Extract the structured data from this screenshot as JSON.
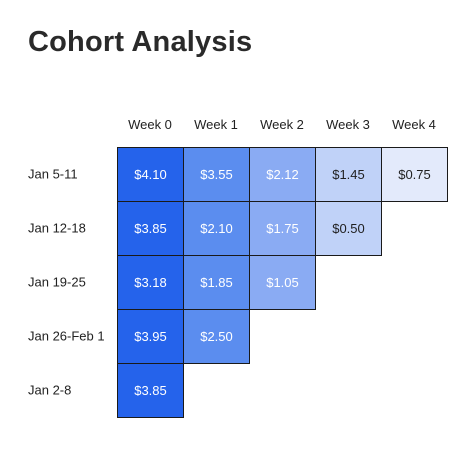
{
  "chart_data": {
    "type": "heatmap",
    "title": "Cohort Analysis",
    "columns": [
      "Week 0",
      "Week 1",
      "Week 2",
      "Week 3",
      "Week 4"
    ],
    "rows": [
      "Jan 5-11",
      "Jan 12-18",
      "Jan 19-25",
      "Jan 26-Feb 1",
      "Jan 2-8"
    ],
    "values": [
      [
        4.1,
        3.55,
        2.12,
        1.45,
        0.75
      ],
      [
        3.85,
        2.1,
        1.75,
        0.5,
        null
      ],
      [
        3.18,
        1.85,
        1.05,
        null,
        null
      ],
      [
        3.95,
        2.5,
        null,
        null,
        null
      ],
      [
        3.85,
        null,
        null,
        null,
        null
      ]
    ],
    "labels": [
      [
        "$4.10",
        "$3.55",
        "$2.12",
        "$1.45",
        "$0.75"
      ],
      [
        "$3.85",
        "$2.10",
        "$1.75",
        "$0.50",
        null
      ],
      [
        "$3.18",
        "$1.85",
        "$1.05",
        null,
        null
      ],
      [
        "$3.95",
        "$2.50",
        null,
        null,
        null
      ],
      [
        "$3.85",
        null,
        null,
        null,
        null
      ]
    ],
    "colors": {
      "week0": "#2563eb",
      "week1": "#5b8def",
      "week2": "#8aabf3",
      "week3": "#c0d2f8",
      "week4": "#e3eafb",
      "border": "#1a1a1a",
      "text_light": "#ffffff",
      "text_dark": "#1f1f1f"
    }
  }
}
